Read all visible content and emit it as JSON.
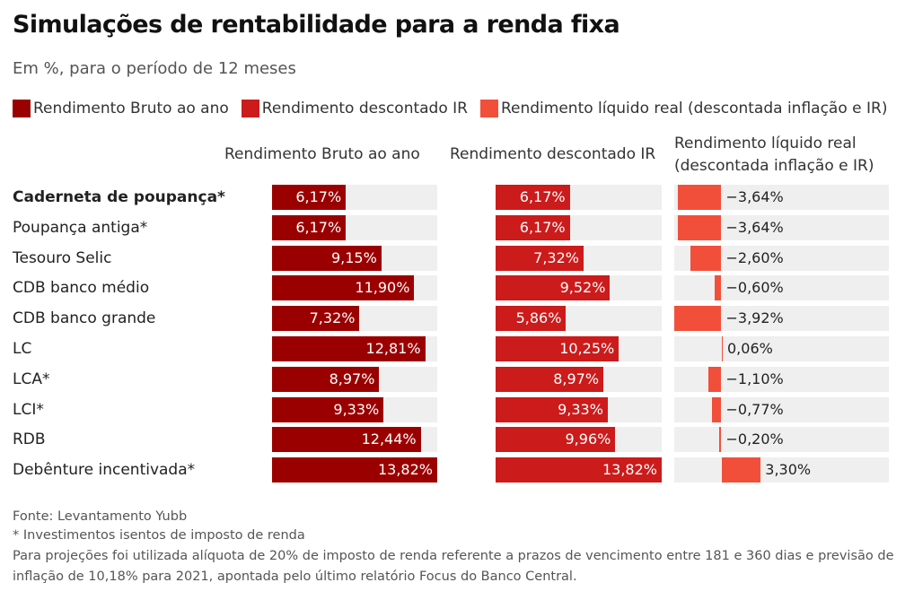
{
  "title": "Simulações de rentabilidade para a renda fixa",
  "subtitle": "Em %, para o período de 12 meses",
  "legend": [
    {
      "label": "Rendimento Bruto ao ano",
      "color": "#9b0000"
    },
    {
      "label": "Rendimento descontado IR",
      "color": "#cc1b1b"
    },
    {
      "label": "Rendimento líquido real (descontada inflação e IR)",
      "color": "#f24f3b"
    }
  ],
  "column_headers": {
    "gross": "Rendimento Bruto ao ano",
    "after_ir": "Rendimento descontado IR",
    "net_real_line1": "Rendimento líquido real",
    "net_real_line2": "(descontada inflação e IR)"
  },
  "chart_data": {
    "type": "bar",
    "title": "Simulações de rentabilidade para a renda fixa",
    "subtitle": "Em %, para o período de 12 meses",
    "unit": "%",
    "categories": [
      "Caderneta de poupança*",
      "Poupança antiga*",
      "Tesouro Selic",
      "CDB banco médio",
      "CDB banco grande",
      "LC",
      "LCA*",
      "LCI*",
      "RDB",
      "Debênture incentivada*"
    ],
    "bold_categories": [
      0
    ],
    "series": [
      {
        "name": "Rendimento Bruto ao ano",
        "color": "#9b0000",
        "values": [
          6.17,
          6.17,
          9.15,
          11.9,
          7.32,
          12.81,
          8.97,
          9.33,
          12.44,
          13.82
        ],
        "labels": [
          "6,17%",
          "6,17%",
          "9,15%",
          "11,90%",
          "7,32%",
          "12,81%",
          "8,97%",
          "9,33%",
          "12,44%",
          "13,82%"
        ]
      },
      {
        "name": "Rendimento descontado IR",
        "color": "#cc1b1b",
        "values": [
          6.17,
          6.17,
          7.32,
          9.52,
          5.86,
          10.25,
          8.97,
          9.33,
          9.96,
          13.82
        ],
        "labels": [
          "6,17%",
          "6,17%",
          "7,32%",
          "9,52%",
          "5,86%",
          "10,25%",
          "8,97%",
          "9,33%",
          "9,96%",
          "13,82%"
        ]
      },
      {
        "name": "Rendimento líquido real (descontada inflação e IR)",
        "color": "#f24f3b",
        "values": [
          -3.64,
          -3.64,
          -2.6,
          -0.6,
          -3.92,
          0.06,
          -1.1,
          -0.77,
          -0.2,
          3.3
        ],
        "labels": [
          "−3,64%",
          "−3,64%",
          "−2,60%",
          "−0,60%",
          "−3,92%",
          "0,06%",
          "−1,10%",
          "−0,77%",
          "−0,20%",
          "3,30%"
        ]
      }
    ],
    "xlim_gross": [
      0,
      13.82
    ],
    "xlim_after_ir": [
      0,
      13.82
    ],
    "xlim_net_real": [
      -3.92,
      3.3
    ]
  },
  "footnotes": [
    "Fonte: Levantamento Yubb",
    "* Investimentos isentos de imposto de renda",
    "Para projeções foi utilizada alíquota de 20% de imposto de renda referente a prazos de vencimento entre 181 e 360 dias e previsão de",
    "inflação de 10,18% para 2021, apontada pelo último relatório Focus do Banco Central."
  ]
}
